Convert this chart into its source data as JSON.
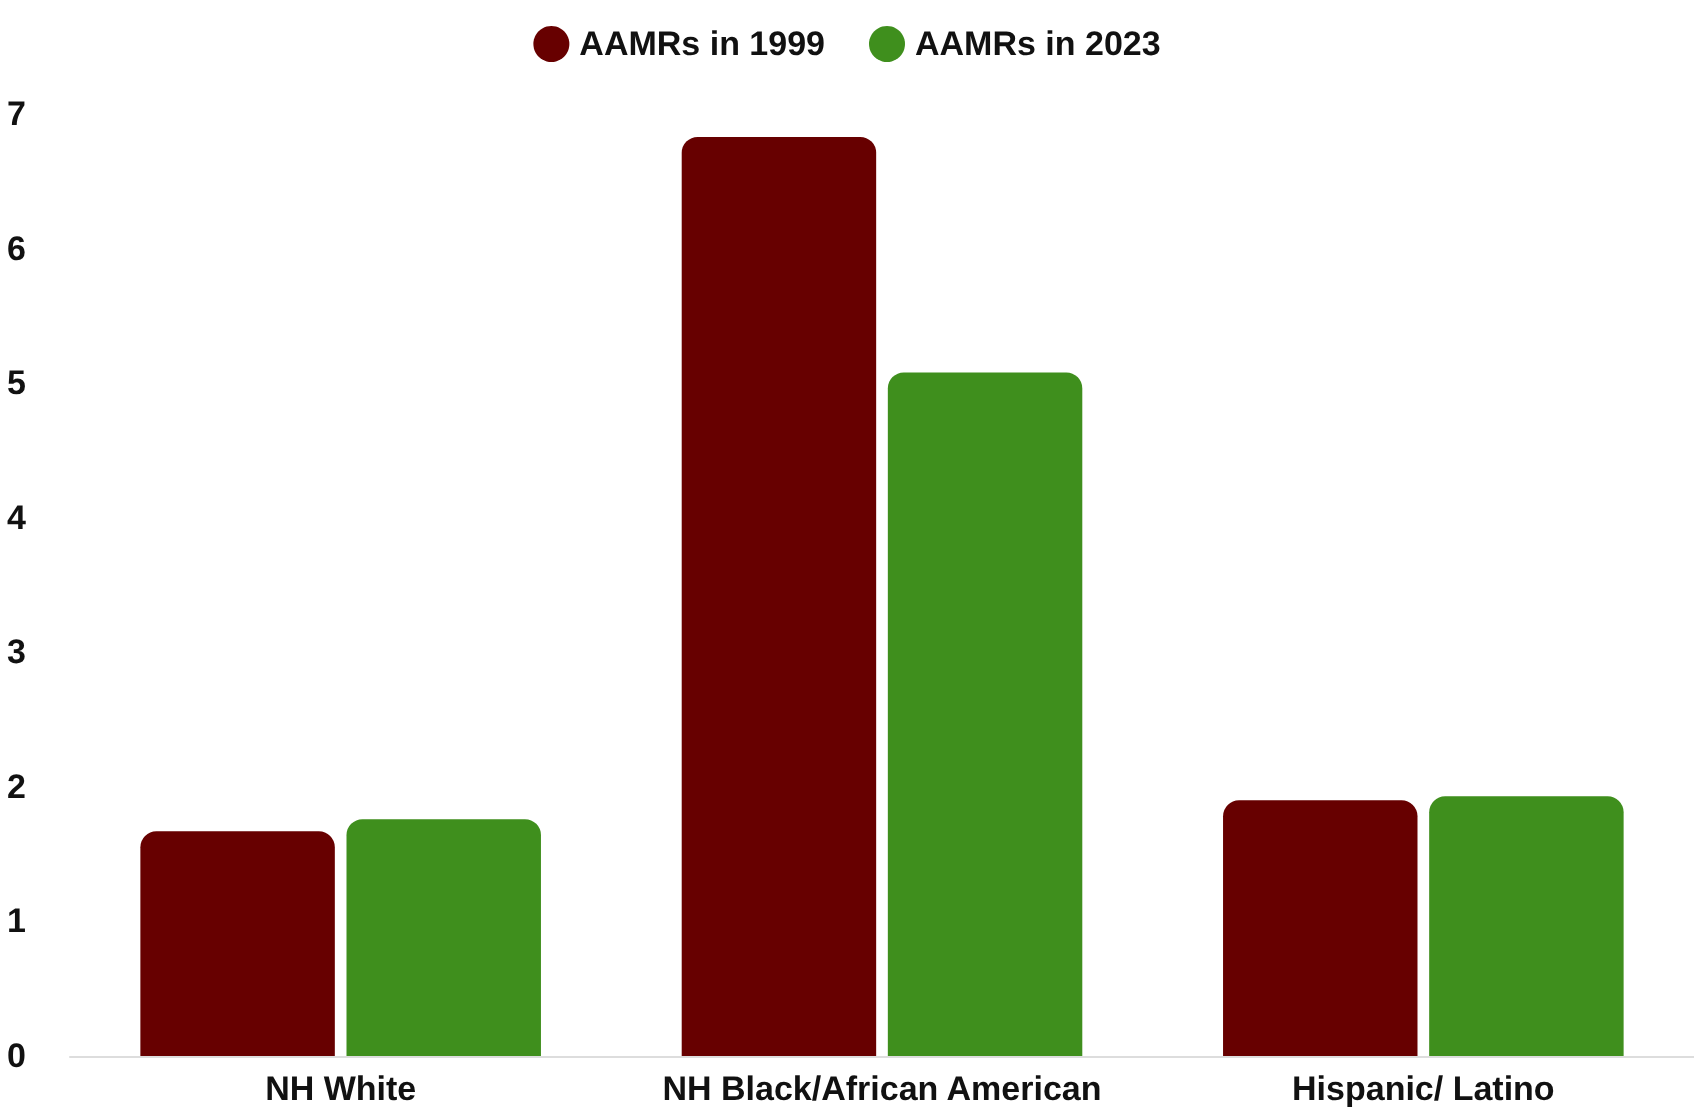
{
  "chart_data": {
    "type": "bar",
    "categories": [
      "NH White",
      "NH Black/African American",
      "Hispanic/ Latino"
    ],
    "series": [
      {
        "name": "AAMRs in 1999",
        "color": "#670000",
        "values": [
          1.67,
          6.83,
          1.9
        ]
      },
      {
        "name": "AAMRs in 2023",
        "color": "#3f8f1d",
        "values": [
          1.76,
          5.08,
          1.93
        ]
      }
    ],
    "ylim": [
      0,
      7
    ],
    "yticks": [
      0,
      1,
      2,
      3,
      4,
      5,
      6,
      7
    ],
    "grid": false,
    "legend": "top"
  }
}
